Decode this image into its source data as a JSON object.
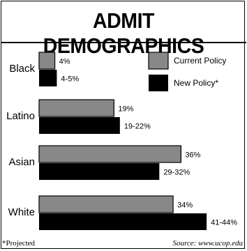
{
  "title": "ADMIT DEMOGRAPHICS",
  "footnote": "*Projected",
  "source": "Source: www.ucop.edu",
  "chart_data": {
    "type": "bar",
    "orientation": "horizontal",
    "categories": [
      "Black",
      "Latino",
      "Asian",
      "White"
    ],
    "series": [
      {
        "name": "Current Policy",
        "color": "#888888",
        "values": [
          4,
          19,
          36,
          34
        ],
        "labels": [
          "4%",
          "19%",
          "36%",
          "34%"
        ]
      },
      {
        "name": "New Policy*",
        "color": "#000000",
        "values": [
          4.5,
          20.5,
          30.5,
          42.5
        ],
        "labels": [
          "4-5%",
          "19-22%",
          "29-32%",
          "41-44%"
        ]
      }
    ],
    "legend": "top-right",
    "grid": false
  }
}
